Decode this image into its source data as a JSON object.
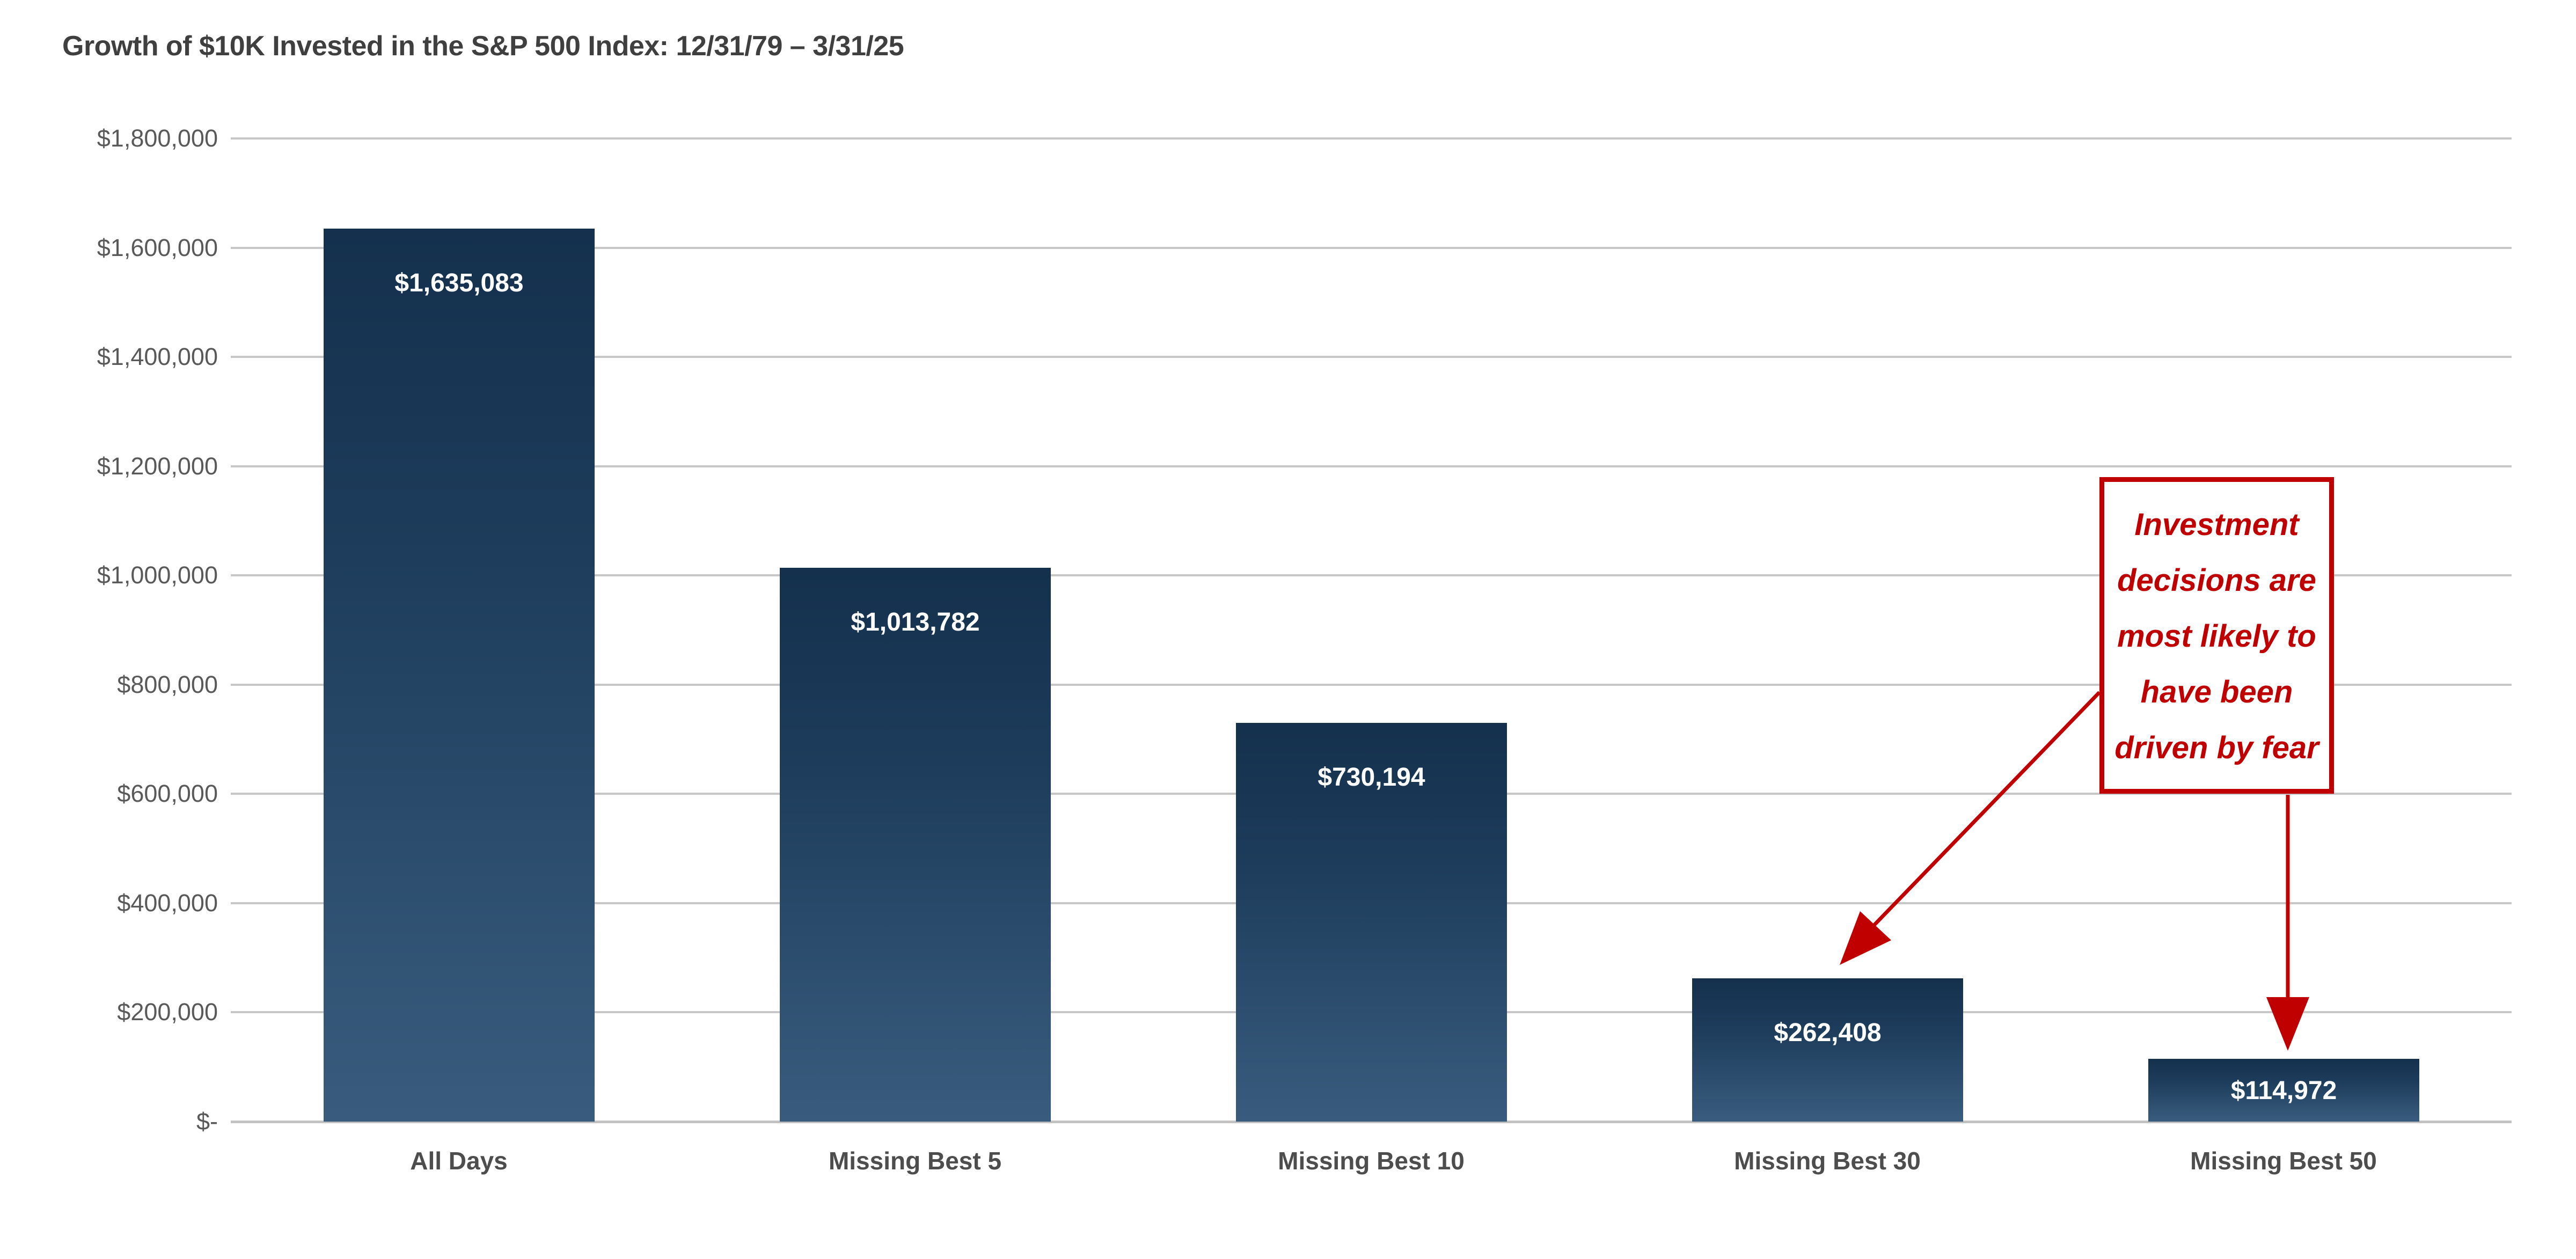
{
  "chart_data": {
    "type": "bar",
    "title": "Growth of $10K Invested in the S&P 500 Index: 12/31/79 – 3/31/25",
    "categories": [
      "All Days",
      "Missing Best 5",
      "Missing Best 10",
      "Missing Best 30",
      "Missing Best 50"
    ],
    "values": [
      1635083,
      1013782,
      730194,
      262408,
      114972
    ],
    "value_labels": [
      "$1,635,083",
      "$1,013,782",
      "$730,194",
      "$262,408",
      "$114,972"
    ],
    "xlabel": "",
    "ylabel": "",
    "ylim": [
      0,
      1800000
    ],
    "ytick_step": 200000,
    "yticks_top_to_bottom": [
      "$1,800,000",
      "$1,600,000",
      "$1,400,000",
      "$1,200,000",
      "$1,000,000",
      "$800,000",
      "$600,000",
      "$400,000",
      "$200,000",
      "$-"
    ],
    "grid": "horizontal",
    "legend": "none",
    "bar_color_top": "#14304d",
    "bar_color_bottom": "#395c7e",
    "annotation": {
      "text": "Investment decisions are most likely to have been driven by fear",
      "lines": [
        "Investment",
        "decisions are",
        "most likely to",
        "have been",
        "driven by fear"
      ],
      "color": "#C00000",
      "arrow_targets": [
        "Missing Best 30",
        "Missing Best 50"
      ]
    }
  }
}
